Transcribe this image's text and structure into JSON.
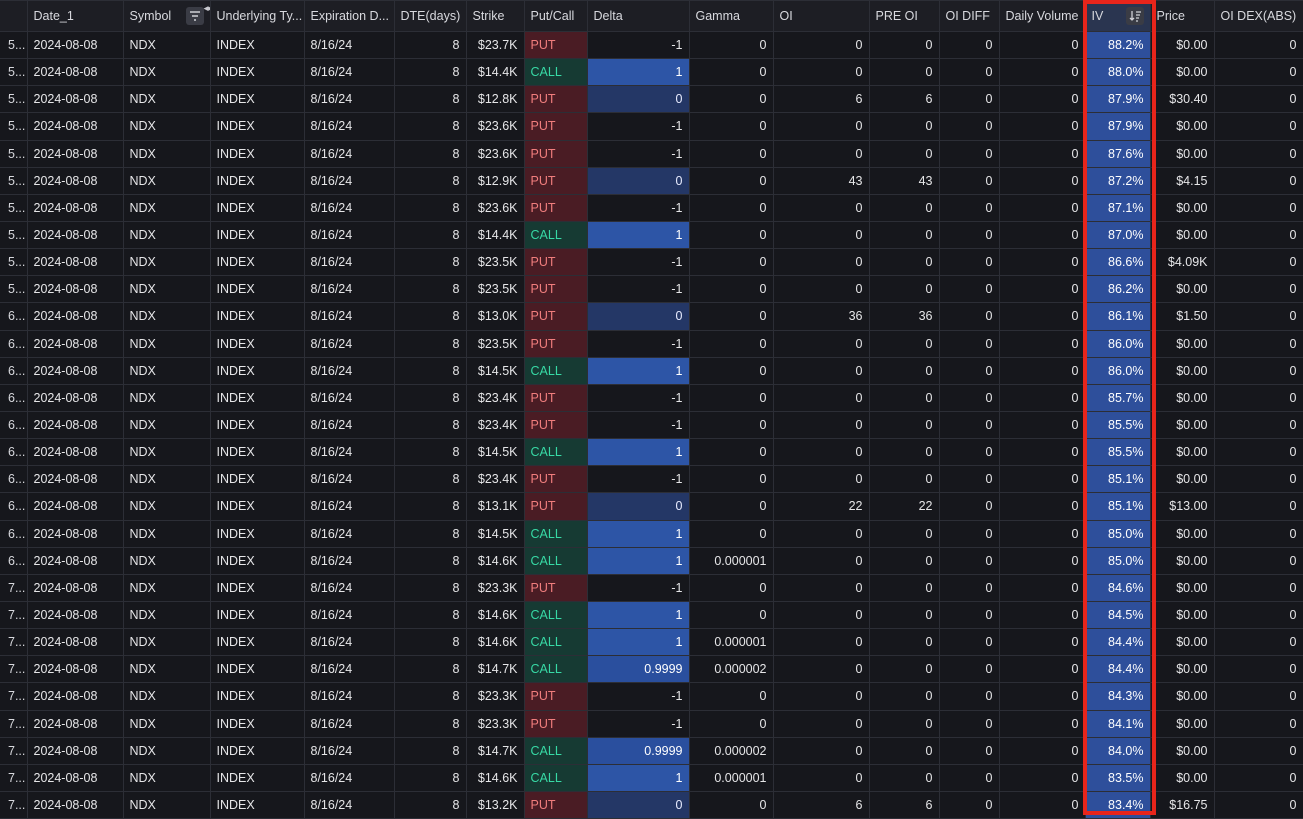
{
  "columns": {
    "idx": "",
    "date": "Date_1",
    "symbol": "Symbol",
    "underlying": "Underlying Ty...",
    "expiration": "Expiration D...",
    "dte": "DTE(days)",
    "strike": "Strike",
    "putcall": "Put/Call",
    "delta": "Delta",
    "gamma": "Gamma",
    "oi": "OI",
    "preoi": "PRE OI",
    "oidiff": "OI DIFF",
    "volume": "Daily Volume",
    "iv": "IV",
    "price": "Price",
    "oidex": "OI DEX(ABS)"
  },
  "icons": {
    "symbol_filter": "filter-icon",
    "iv_sort": "sort-descending-icon",
    "resize": "column-resize-icon"
  },
  "highlight_color": "#e8251b",
  "rows": [
    {
      "idx": "5...",
      "date": "2024-08-08",
      "symbol": "NDX",
      "underlying": "INDEX",
      "expiration": "8/16/24",
      "dte": "8",
      "strike": "$23.7K",
      "putcall": "PUT",
      "delta": "-1",
      "gamma": "0",
      "oi": "0",
      "preoi": "0",
      "oidiff": "0",
      "volume": "0",
      "iv": "88.2%",
      "price": "$0.00",
      "oidex": "0"
    },
    {
      "idx": "5...",
      "date": "2024-08-08",
      "symbol": "NDX",
      "underlying": "INDEX",
      "expiration": "8/16/24",
      "dte": "8",
      "strike": "$14.4K",
      "putcall": "CALL",
      "delta": "1",
      "gamma": "0",
      "oi": "0",
      "preoi": "0",
      "oidiff": "0",
      "volume": "0",
      "iv": "88.0%",
      "price": "$0.00",
      "oidex": "0"
    },
    {
      "idx": "5...",
      "date": "2024-08-08",
      "symbol": "NDX",
      "underlying": "INDEX",
      "expiration": "8/16/24",
      "dte": "8",
      "strike": "$12.8K",
      "putcall": "PUT",
      "delta": "0",
      "gamma": "0",
      "oi": "6",
      "preoi": "6",
      "oidiff": "0",
      "volume": "0",
      "iv": "87.9%",
      "price": "$30.40",
      "oidex": "0"
    },
    {
      "idx": "5...",
      "date": "2024-08-08",
      "symbol": "NDX",
      "underlying": "INDEX",
      "expiration": "8/16/24",
      "dte": "8",
      "strike": "$23.6K",
      "putcall": "PUT",
      "delta": "-1",
      "gamma": "0",
      "oi": "0",
      "preoi": "0",
      "oidiff": "0",
      "volume": "0",
      "iv": "87.9%",
      "price": "$0.00",
      "oidex": "0"
    },
    {
      "idx": "5...",
      "date": "2024-08-08",
      "symbol": "NDX",
      "underlying": "INDEX",
      "expiration": "8/16/24",
      "dte": "8",
      "strike": "$23.6K",
      "putcall": "PUT",
      "delta": "-1",
      "gamma": "0",
      "oi": "0",
      "preoi": "0",
      "oidiff": "0",
      "volume": "0",
      "iv": "87.6%",
      "price": "$0.00",
      "oidex": "0"
    },
    {
      "idx": "5...",
      "date": "2024-08-08",
      "symbol": "NDX",
      "underlying": "INDEX",
      "expiration": "8/16/24",
      "dte": "8",
      "strike": "$12.9K",
      "putcall": "PUT",
      "delta": "0",
      "gamma": "0",
      "oi": "43",
      "preoi": "43",
      "oidiff": "0",
      "volume": "0",
      "iv": "87.2%",
      "price": "$4.15",
      "oidex": "0"
    },
    {
      "idx": "5...",
      "date": "2024-08-08",
      "symbol": "NDX",
      "underlying": "INDEX",
      "expiration": "8/16/24",
      "dte": "8",
      "strike": "$23.6K",
      "putcall": "PUT",
      "delta": "-1",
      "gamma": "0",
      "oi": "0",
      "preoi": "0",
      "oidiff": "0",
      "volume": "0",
      "iv": "87.1%",
      "price": "$0.00",
      "oidex": "0"
    },
    {
      "idx": "5...",
      "date": "2024-08-08",
      "symbol": "NDX",
      "underlying": "INDEX",
      "expiration": "8/16/24",
      "dte": "8",
      "strike": "$14.4K",
      "putcall": "CALL",
      "delta": "1",
      "gamma": "0",
      "oi": "0",
      "preoi": "0",
      "oidiff": "0",
      "volume": "0",
      "iv": "87.0%",
      "price": "$0.00",
      "oidex": "0"
    },
    {
      "idx": "5...",
      "date": "2024-08-08",
      "symbol": "NDX",
      "underlying": "INDEX",
      "expiration": "8/16/24",
      "dte": "8",
      "strike": "$23.5K",
      "putcall": "PUT",
      "delta": "-1",
      "gamma": "0",
      "oi": "0",
      "preoi": "0",
      "oidiff": "0",
      "volume": "0",
      "iv": "86.6%",
      "price": "$4.09K",
      "oidex": "0"
    },
    {
      "idx": "5...",
      "date": "2024-08-08",
      "symbol": "NDX",
      "underlying": "INDEX",
      "expiration": "8/16/24",
      "dte": "8",
      "strike": "$23.5K",
      "putcall": "PUT",
      "delta": "-1",
      "gamma": "0",
      "oi": "0",
      "preoi": "0",
      "oidiff": "0",
      "volume": "0",
      "iv": "86.2%",
      "price": "$0.00",
      "oidex": "0"
    },
    {
      "idx": "6...",
      "date": "2024-08-08",
      "symbol": "NDX",
      "underlying": "INDEX",
      "expiration": "8/16/24",
      "dte": "8",
      "strike": "$13.0K",
      "putcall": "PUT",
      "delta": "0",
      "gamma": "0",
      "oi": "36",
      "preoi": "36",
      "oidiff": "0",
      "volume": "0",
      "iv": "86.1%",
      "price": "$1.50",
      "oidex": "0"
    },
    {
      "idx": "6...",
      "date": "2024-08-08",
      "symbol": "NDX",
      "underlying": "INDEX",
      "expiration": "8/16/24",
      "dte": "8",
      "strike": "$23.5K",
      "putcall": "PUT",
      "delta": "-1",
      "gamma": "0",
      "oi": "0",
      "preoi": "0",
      "oidiff": "0",
      "volume": "0",
      "iv": "86.0%",
      "price": "$0.00",
      "oidex": "0"
    },
    {
      "idx": "6...",
      "date": "2024-08-08",
      "symbol": "NDX",
      "underlying": "INDEX",
      "expiration": "8/16/24",
      "dte": "8",
      "strike": "$14.5K",
      "putcall": "CALL",
      "delta": "1",
      "gamma": "0",
      "oi": "0",
      "preoi": "0",
      "oidiff": "0",
      "volume": "0",
      "iv": "86.0%",
      "price": "$0.00",
      "oidex": "0"
    },
    {
      "idx": "6...",
      "date": "2024-08-08",
      "symbol": "NDX",
      "underlying": "INDEX",
      "expiration": "8/16/24",
      "dte": "8",
      "strike": "$23.4K",
      "putcall": "PUT",
      "delta": "-1",
      "gamma": "0",
      "oi": "0",
      "preoi": "0",
      "oidiff": "0",
      "volume": "0",
      "iv": "85.7%",
      "price": "$0.00",
      "oidex": "0"
    },
    {
      "idx": "6...",
      "date": "2024-08-08",
      "symbol": "NDX",
      "underlying": "INDEX",
      "expiration": "8/16/24",
      "dte": "8",
      "strike": "$23.4K",
      "putcall": "PUT",
      "delta": "-1",
      "gamma": "0",
      "oi": "0",
      "preoi": "0",
      "oidiff": "0",
      "volume": "0",
      "iv": "85.5%",
      "price": "$0.00",
      "oidex": "0"
    },
    {
      "idx": "6...",
      "date": "2024-08-08",
      "symbol": "NDX",
      "underlying": "INDEX",
      "expiration": "8/16/24",
      "dte": "8",
      "strike": "$14.5K",
      "putcall": "CALL",
      "delta": "1",
      "gamma": "0",
      "oi": "0",
      "preoi": "0",
      "oidiff": "0",
      "volume": "0",
      "iv": "85.5%",
      "price": "$0.00",
      "oidex": "0"
    },
    {
      "idx": "6...",
      "date": "2024-08-08",
      "symbol": "NDX",
      "underlying": "INDEX",
      "expiration": "8/16/24",
      "dte": "8",
      "strike": "$23.4K",
      "putcall": "PUT",
      "delta": "-1",
      "gamma": "0",
      "oi": "0",
      "preoi": "0",
      "oidiff": "0",
      "volume": "0",
      "iv": "85.1%",
      "price": "$0.00",
      "oidex": "0"
    },
    {
      "idx": "6...",
      "date": "2024-08-08",
      "symbol": "NDX",
      "underlying": "INDEX",
      "expiration": "8/16/24",
      "dte": "8",
      "strike": "$13.1K",
      "putcall": "PUT",
      "delta": "0",
      "gamma": "0",
      "oi": "22",
      "preoi": "22",
      "oidiff": "0",
      "volume": "0",
      "iv": "85.1%",
      "price": "$13.00",
      "oidex": "0"
    },
    {
      "idx": "6...",
      "date": "2024-08-08",
      "symbol": "NDX",
      "underlying": "INDEX",
      "expiration": "8/16/24",
      "dte": "8",
      "strike": "$14.5K",
      "putcall": "CALL",
      "delta": "1",
      "gamma": "0",
      "oi": "0",
      "preoi": "0",
      "oidiff": "0",
      "volume": "0",
      "iv": "85.0%",
      "price": "$0.00",
      "oidex": "0"
    },
    {
      "idx": "6...",
      "date": "2024-08-08",
      "symbol": "NDX",
      "underlying": "INDEX",
      "expiration": "8/16/24",
      "dte": "8",
      "strike": "$14.6K",
      "putcall": "CALL",
      "delta": "1",
      "gamma": "0.000001",
      "oi": "0",
      "preoi": "0",
      "oidiff": "0",
      "volume": "0",
      "iv": "85.0%",
      "price": "$0.00",
      "oidex": "0"
    },
    {
      "idx": "7...",
      "date": "2024-08-08",
      "symbol": "NDX",
      "underlying": "INDEX",
      "expiration": "8/16/24",
      "dte": "8",
      "strike": "$23.3K",
      "putcall": "PUT",
      "delta": "-1",
      "gamma": "0",
      "oi": "0",
      "preoi": "0",
      "oidiff": "0",
      "volume": "0",
      "iv": "84.6%",
      "price": "$0.00",
      "oidex": "0"
    },
    {
      "idx": "7...",
      "date": "2024-08-08",
      "symbol": "NDX",
      "underlying": "INDEX",
      "expiration": "8/16/24",
      "dte": "8",
      "strike": "$14.6K",
      "putcall": "CALL",
      "delta": "1",
      "gamma": "0",
      "oi": "0",
      "preoi": "0",
      "oidiff": "0",
      "volume": "0",
      "iv": "84.5%",
      "price": "$0.00",
      "oidex": "0"
    },
    {
      "idx": "7...",
      "date": "2024-08-08",
      "symbol": "NDX",
      "underlying": "INDEX",
      "expiration": "8/16/24",
      "dte": "8",
      "strike": "$14.6K",
      "putcall": "CALL",
      "delta": "1",
      "gamma": "0.000001",
      "oi": "0",
      "preoi": "0",
      "oidiff": "0",
      "volume": "0",
      "iv": "84.4%",
      "price": "$0.00",
      "oidex": "0"
    },
    {
      "idx": "7...",
      "date": "2024-08-08",
      "symbol": "NDX",
      "underlying": "INDEX",
      "expiration": "8/16/24",
      "dte": "8",
      "strike": "$14.7K",
      "putcall": "CALL",
      "delta": "0.9999",
      "gamma": "0.000002",
      "oi": "0",
      "preoi": "0",
      "oidiff": "0",
      "volume": "0",
      "iv": "84.4%",
      "price": "$0.00",
      "oidex": "0"
    },
    {
      "idx": "7...",
      "date": "2024-08-08",
      "symbol": "NDX",
      "underlying": "INDEX",
      "expiration": "8/16/24",
      "dte": "8",
      "strike": "$23.3K",
      "putcall": "PUT",
      "delta": "-1",
      "gamma": "0",
      "oi": "0",
      "preoi": "0",
      "oidiff": "0",
      "volume": "0",
      "iv": "84.3%",
      "price": "$0.00",
      "oidex": "0"
    },
    {
      "idx": "7...",
      "date": "2024-08-08",
      "symbol": "NDX",
      "underlying": "INDEX",
      "expiration": "8/16/24",
      "dte": "8",
      "strike": "$23.3K",
      "putcall": "PUT",
      "delta": "-1",
      "gamma": "0",
      "oi": "0",
      "preoi": "0",
      "oidiff": "0",
      "volume": "0",
      "iv": "84.1%",
      "price": "$0.00",
      "oidex": "0"
    },
    {
      "idx": "7...",
      "date": "2024-08-08",
      "symbol": "NDX",
      "underlying": "INDEX",
      "expiration": "8/16/24",
      "dte": "8",
      "strike": "$14.7K",
      "putcall": "CALL",
      "delta": "0.9999",
      "gamma": "0.000002",
      "oi": "0",
      "preoi": "0",
      "oidiff": "0",
      "volume": "0",
      "iv": "84.0%",
      "price": "$0.00",
      "oidex": "0"
    },
    {
      "idx": "7...",
      "date": "2024-08-08",
      "symbol": "NDX",
      "underlying": "INDEX",
      "expiration": "8/16/24",
      "dte": "8",
      "strike": "$14.6K",
      "putcall": "CALL",
      "delta": "1",
      "gamma": "0.000001",
      "oi": "0",
      "preoi": "0",
      "oidiff": "0",
      "volume": "0",
      "iv": "83.5%",
      "price": "$0.00",
      "oidex": "0"
    },
    {
      "idx": "7...",
      "date": "2024-08-08",
      "symbol": "NDX",
      "underlying": "INDEX",
      "expiration": "8/16/24",
      "dte": "8",
      "strike": "$13.2K",
      "putcall": "PUT",
      "delta": "0",
      "gamma": "0",
      "oi": "6",
      "preoi": "6",
      "oidiff": "0",
      "volume": "0",
      "iv": "83.4%",
      "price": "$16.75",
      "oidex": "0"
    }
  ]
}
